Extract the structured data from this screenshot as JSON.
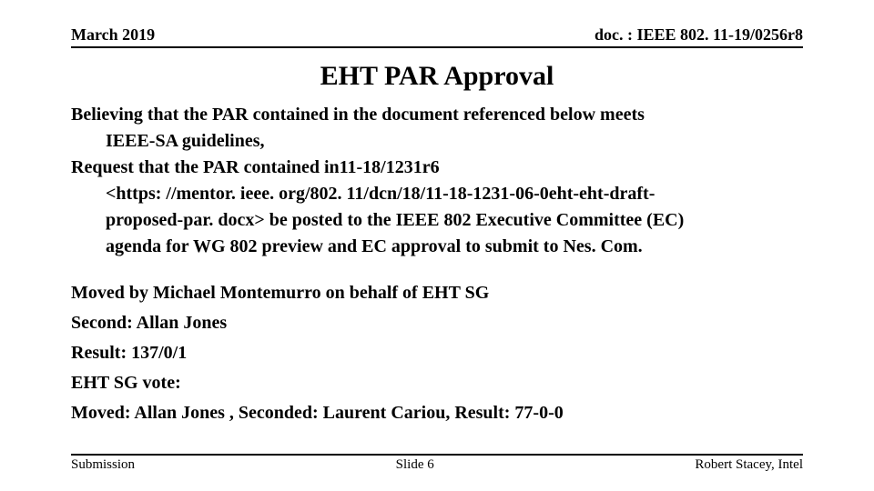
{
  "header": {
    "date": "March 2019",
    "docref": "doc. : IEEE 802. 11-19/0256r8"
  },
  "title": "EHT PAR Approval",
  "body": {
    "p1_l1": "Believing that the PAR contained in the document referenced below meets",
    "p1_l2": "IEEE-SA guidelines,",
    "p2_l1": "Request that the PAR contained in11-18/1231r6",
    "p2_l2": "<https: //mentor. ieee. org/802. 11/dcn/18/11-18-1231-06-0eht-eht-draft-",
    "p2_l3": "proposed-par. docx> be posted to the IEEE 802 Executive Committee (EC)",
    "p2_l4": "agenda for WG 802 preview and EC approval to submit to Nes. Com.",
    "moved": "Moved by Michael Montemurro on behalf of EHT SG",
    "second": "Second: Allan Jones",
    "result": "Result: 137/0/1",
    "sgvote": "EHT SG vote:",
    "sgline": "Moved: Allan Jones , Seconded: Laurent Cariou, Result: 77-0-0"
  },
  "footer": {
    "left": "Submission",
    "center": "Slide 6",
    "right": "Robert Stacey, Intel"
  }
}
